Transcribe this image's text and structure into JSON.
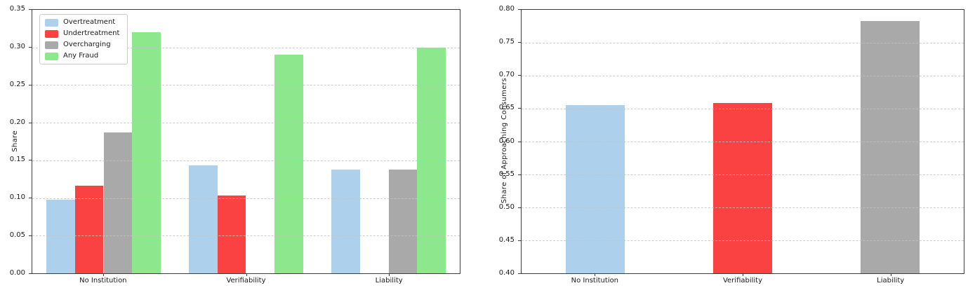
{
  "chart_data": [
    {
      "type": "bar",
      "title": "",
      "xlabel": "",
      "ylabel": "Share",
      "ylim": [
        0.0,
        0.35
      ],
      "yticks": [
        0.0,
        0.05,
        0.1,
        0.15,
        0.2,
        0.25,
        0.3,
        0.35
      ],
      "grid": "horizontal-dashed",
      "legend_position": "upper left",
      "categories": [
        "No Institution",
        "Verifiability",
        "Liability"
      ],
      "bar_width_units": 0.2,
      "series": [
        {
          "name": "Overtreatment",
          "color": "#add1ec",
          "offset": -0.3,
          "values": [
            0.098,
            0.143,
            0.138
          ]
        },
        {
          "name": "Undertreatment",
          "color": "#fb4242",
          "offset": -0.1,
          "values": [
            0.116,
            0.103,
            0.0
          ]
        },
        {
          "name": "Overcharging",
          "color": "#a9a9a9",
          "offset": 0.1,
          "values": [
            0.187,
            0.0,
            0.138
          ]
        },
        {
          "name": "Any Fraud",
          "color": "#8de88d",
          "offset": 0.3,
          "values": [
            0.32,
            0.29,
            0.3
          ]
        }
      ]
    },
    {
      "type": "bar",
      "title": "",
      "xlabel": "",
      "ylabel": "Share of Approaching Consumers",
      "ylim": [
        0.4,
        0.8
      ],
      "yticks": [
        0.4,
        0.45,
        0.5,
        0.55,
        0.6,
        0.65,
        0.7,
        0.75,
        0.8
      ],
      "grid": "horizontal-dashed",
      "legend_position": "none",
      "categories": [
        "No Institution",
        "Verifiability",
        "Liability"
      ],
      "bar_width_units": 0.4,
      "series": [
        {
          "name": "Share of Approaching Consumers",
          "offset": 0.0,
          "colors": [
            "#add1ec",
            "#fb4242",
            "#a9a9a9"
          ],
          "values": [
            0.655,
            0.659,
            0.783
          ]
        }
      ]
    }
  ],
  "colors": {
    "overtreatment": "#add1ec",
    "undertreatment": "#fb4242",
    "overcharging": "#a9a9a9",
    "any_fraud": "#8de88d",
    "grid": "#c4c4c4",
    "spine": "#3c3c3c"
  }
}
